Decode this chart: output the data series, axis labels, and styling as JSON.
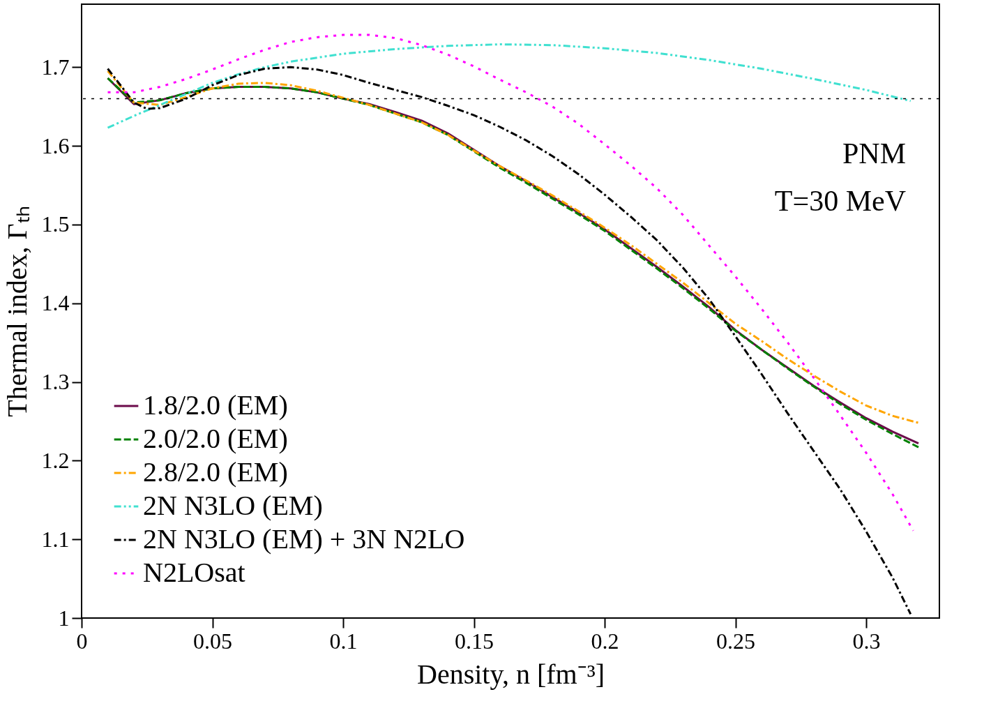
{
  "chart_data": {
    "type": "line",
    "xlabel": "Density, n [fm⁻³]",
    "ylabel": "Thermal index, Γₜₕ",
    "xlim": [
      0,
      0.328
    ],
    "ylim": [
      1,
      1.78
    ],
    "xticks": [
      0,
      0.05,
      0.1,
      0.15,
      0.2,
      0.25,
      0.3
    ],
    "yticks": [
      1,
      1.1,
      1.2,
      1.3,
      1.4,
      1.5,
      1.6,
      1.7
    ],
    "grid": false,
    "legend": "bottom left",
    "annotations": [
      "PNM",
      "T=30 MeV"
    ],
    "ref_lines": [
      {
        "axis": "y",
        "value": 1.66,
        "label": null,
        "color": "#000000",
        "line_style": "dotted"
      }
    ],
    "series": [
      {
        "name": "1.8/2.0 (EM)",
        "color": "#6b0a4a",
        "line_style": "solid",
        "x": [
          0.01,
          0.02,
          0.03,
          0.04,
          0.05,
          0.06,
          0.07,
          0.08,
          0.09,
          0.1,
          0.11,
          0.12,
          0.13,
          0.14,
          0.15,
          0.16,
          0.17,
          0.18,
          0.19,
          0.2,
          0.21,
          0.22,
          0.23,
          0.24,
          0.25,
          0.26,
          0.27,
          0.28,
          0.29,
          0.3,
          0.31,
          0.32
        ],
        "values": [
          1.686,
          1.653,
          1.658,
          1.667,
          1.673,
          1.675,
          1.675,
          1.673,
          1.668,
          1.66,
          1.653,
          1.643,
          1.632,
          1.616,
          1.595,
          1.574,
          1.555,
          1.535,
          1.515,
          1.494,
          1.47,
          1.446,
          1.421,
          1.395,
          1.366,
          1.341,
          1.318,
          1.295,
          1.274,
          1.254,
          1.237,
          1.222
        ]
      },
      {
        "name": "2.0/2.0 (EM)",
        "color": "#008000",
        "line_style": "dashed",
        "x": [
          0.01,
          0.02,
          0.03,
          0.04,
          0.05,
          0.06,
          0.07,
          0.08,
          0.09,
          0.1,
          0.11,
          0.12,
          0.13,
          0.14,
          0.15,
          0.16,
          0.17,
          0.18,
          0.19,
          0.2,
          0.21,
          0.22,
          0.23,
          0.24,
          0.25,
          0.26,
          0.27,
          0.28,
          0.29,
          0.3,
          0.31,
          0.32
        ],
        "values": [
          1.686,
          1.655,
          1.658,
          1.667,
          1.673,
          1.675,
          1.675,
          1.673,
          1.668,
          1.66,
          1.652,
          1.641,
          1.63,
          1.614,
          1.593,
          1.572,
          1.553,
          1.533,
          1.513,
          1.492,
          1.468,
          1.444,
          1.419,
          1.393,
          1.365,
          1.341,
          1.317,
          1.294,
          1.272,
          1.252,
          1.234,
          1.217
        ]
      },
      {
        "name": "2.8/2.0 (EM)",
        "color": "#ffa500",
        "line_style": "dashdot",
        "x": [
          0.01,
          0.02,
          0.03,
          0.04,
          0.05,
          0.06,
          0.07,
          0.08,
          0.09,
          0.1,
          0.11,
          0.12,
          0.13,
          0.14,
          0.15,
          0.16,
          0.17,
          0.18,
          0.19,
          0.2,
          0.21,
          0.22,
          0.23,
          0.24,
          0.25,
          0.26,
          0.27,
          0.28,
          0.29,
          0.3,
          0.31,
          0.32
        ],
        "values": [
          1.695,
          1.655,
          1.652,
          1.662,
          1.673,
          1.679,
          1.68,
          1.677,
          1.67,
          1.661,
          1.652,
          1.641,
          1.63,
          1.614,
          1.594,
          1.574,
          1.556,
          1.537,
          1.517,
          1.496,
          1.474,
          1.45,
          1.426,
          1.4,
          1.374,
          1.352,
          1.329,
          1.308,
          1.288,
          1.27,
          1.257,
          1.248
        ]
      },
      {
        "name": "2N N3LO (EM)",
        "color": "#40e0d0",
        "line_style": "dashdotdot",
        "x": [
          0.01,
          0.02,
          0.03,
          0.04,
          0.05,
          0.06,
          0.07,
          0.08,
          0.09,
          0.1,
          0.12,
          0.14,
          0.16,
          0.18,
          0.2,
          0.22,
          0.24,
          0.26,
          0.28,
          0.3,
          0.317
        ],
        "values": [
          1.623,
          1.638,
          1.652,
          1.666,
          1.68,
          1.691,
          1.7,
          1.707,
          1.712,
          1.717,
          1.723,
          1.727,
          1.729,
          1.728,
          1.724,
          1.718,
          1.709,
          1.698,
          1.685,
          1.671,
          1.657
        ]
      },
      {
        "name": "2N N3LO (EM) + 3N N2LO",
        "color": "#000000",
        "line_style": "dashdot",
        "x": [
          0.01,
          0.02,
          0.025,
          0.03,
          0.04,
          0.05,
          0.06,
          0.07,
          0.08,
          0.09,
          0.1,
          0.11,
          0.12,
          0.13,
          0.14,
          0.15,
          0.16,
          0.17,
          0.18,
          0.19,
          0.2,
          0.21,
          0.22,
          0.23,
          0.24,
          0.25,
          0.26,
          0.27,
          0.28,
          0.29,
          0.3,
          0.31,
          0.317
        ],
        "values": [
          1.698,
          1.655,
          1.647,
          1.648,
          1.66,
          1.677,
          1.69,
          1.698,
          1.7,
          1.697,
          1.69,
          1.68,
          1.671,
          1.662,
          1.651,
          1.639,
          1.624,
          1.607,
          1.587,
          1.564,
          1.538,
          1.51,
          1.48,
          1.445,
          1.405,
          1.358,
          1.31,
          1.26,
          1.212,
          1.164,
          1.11,
          1.052,
          1.005
        ]
      },
      {
        "name": "N2LOsat",
        "color": "#ff00ff",
        "line_style": "dotted",
        "x": [
          0.01,
          0.02,
          0.03,
          0.04,
          0.05,
          0.06,
          0.07,
          0.08,
          0.09,
          0.1,
          0.11,
          0.12,
          0.13,
          0.14,
          0.15,
          0.16,
          0.17,
          0.18,
          0.19,
          0.2,
          0.21,
          0.22,
          0.23,
          0.24,
          0.25,
          0.26,
          0.27,
          0.28,
          0.29,
          0.3,
          0.31,
          0.318
        ],
        "values": [
          1.668,
          1.668,
          1.675,
          1.685,
          1.697,
          1.71,
          1.722,
          1.732,
          1.738,
          1.741,
          1.741,
          1.737,
          1.728,
          1.716,
          1.701,
          1.684,
          1.668,
          1.65,
          1.628,
          1.602,
          1.575,
          1.546,
          1.512,
          1.473,
          1.434,
          1.393,
          1.35,
          1.305,
          1.258,
          1.21,
          1.158,
          1.111
        ]
      }
    ]
  }
}
